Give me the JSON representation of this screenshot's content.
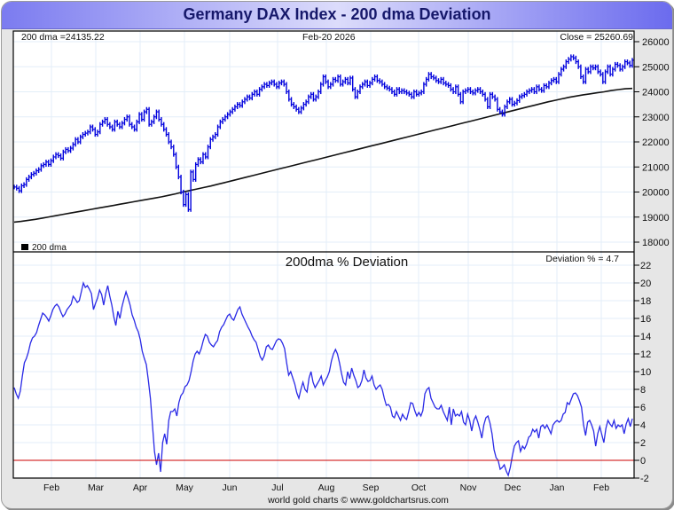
{
  "header": {
    "title": "Germany DAX Index - 200 dma Deviation"
  },
  "footer": {
    "credit": "world gold charts © www.goldchartsrus.com"
  },
  "colors": {
    "price": "#0000dd",
    "dma": "#111111",
    "deviation": "#2a2ae6",
    "zero_line": "#cc0000",
    "grid": "#e3eef8"
  },
  "chart_data": [
    {
      "type": "bar",
      "subtype": "ohlc",
      "title": "Germany DAX Index",
      "annotations": {
        "dma_label": "200 dma =24135.22",
        "date_label": "Feb-20  2026",
        "close_label": "Close = 25260.69"
      },
      "legend": {
        "label": "200 dma",
        "placement": "bottom-left"
      },
      "ylim": [
        17700,
        26300
      ],
      "yticks": [
        18000,
        19000,
        20000,
        21000,
        22000,
        23000,
        24000,
        25000,
        26000
      ],
      "xticks": [
        "Feb",
        "Mar",
        "Apr",
        "May",
        "Jun",
        "Jul",
        "Aug",
        "Sep",
        "Oct",
        "Nov",
        "Dec",
        "Jan",
        "Feb"
      ],
      "grid": true,
      "series": [
        {
          "name": "DAX close (approx, daily)",
          "values": [
            20200,
            20150,
            20050,
            20250,
            20300,
            20500,
            20600,
            20700,
            20750,
            20850,
            20900,
            21050,
            21100,
            21200,
            21100,
            21250,
            21400,
            21500,
            21450,
            21350,
            21600,
            21700,
            21650,
            21750,
            21900,
            22100,
            22000,
            22200,
            22300,
            22350,
            22400,
            22600,
            22500,
            22300,
            22400,
            22700,
            22800,
            22900,
            22700,
            22600,
            22500,
            22800,
            22700,
            22600,
            22750,
            22900,
            23000,
            22700,
            22600,
            22500,
            22800,
            23100,
            22900,
            23200,
            23300,
            22700,
            22800,
            23000,
            23200,
            22900,
            22700,
            22500,
            22300,
            22000,
            21800,
            21500,
            21000,
            20600,
            20000,
            19500,
            19900,
            19300,
            20800,
            20500,
            21100,
            21300,
            21200,
            21500,
            21400,
            21800,
            22100,
            22200,
            22300,
            22600,
            22800,
            22900,
            23000,
            23100,
            23200,
            23300,
            23400,
            23500,
            23450,
            23600,
            23700,
            23800,
            23750,
            23900,
            24000,
            23900,
            24100,
            24200,
            24300,
            24250,
            24350,
            24400,
            24300,
            24200,
            24350,
            24400,
            24300,
            24000,
            23700,
            23500,
            23400,
            23300,
            23200,
            23350,
            23500,
            23600,
            23800,
            23900,
            23700,
            23800,
            24000,
            24300,
            24600,
            24400,
            24200,
            24300,
            24500,
            24450,
            24600,
            24300,
            24400,
            24500,
            24350,
            24550,
            24100,
            23800,
            24000,
            24200,
            24300,
            24400,
            24250,
            24350,
            24500,
            24600,
            24450,
            24400,
            24300,
            24200,
            24150,
            24100,
            24000,
            23900,
            24100,
            24000,
            24050,
            24000,
            23950,
            23900,
            23800,
            24000,
            23900,
            23950,
            24000,
            24300,
            24500,
            24700,
            24600,
            24550,
            24450,
            24400,
            24500,
            24350,
            24300,
            24250,
            24100,
            24000,
            24200,
            23900,
            23600,
            24000,
            24050,
            24100,
            24000,
            23950,
            24050,
            24100,
            24000,
            23900,
            23700,
            23400,
            23900,
            23800,
            23700,
            23300,
            23200,
            23100,
            23400,
            23600,
            23700,
            23500,
            23550,
            23650,
            23800,
            23850,
            23900,
            24000,
            24050,
            24100,
            24000,
            24200,
            24100,
            24050,
            24250,
            24200,
            24350,
            24450,
            24500,
            24400,
            24700,
            24900,
            25000,
            25200,
            25300,
            25400,
            25350,
            25200,
            25000,
            24600,
            24400,
            24900,
            24800,
            25000,
            24950,
            25000,
            24800,
            24700,
            24400,
            24800,
            25000,
            24700,
            24900,
            25100,
            25050,
            24900,
            25000,
            25200,
            25150,
            25050,
            25260
          ]
        },
        {
          "name": "200 dma",
          "values": [
            18800,
            18830,
            18870,
            18910,
            18960,
            19010,
            19060,
            19110,
            19160,
            19210,
            19260,
            19310,
            19360,
            19410,
            19460,
            19510,
            19560,
            19610,
            19660,
            19710,
            19760,
            19810,
            19870,
            19930,
            20000,
            20060,
            20120,
            20180,
            20240,
            20310,
            20380,
            20450,
            20520,
            20590,
            20660,
            20730,
            20800,
            20870,
            20940,
            21010,
            21080,
            21150,
            21220,
            21290,
            21360,
            21430,
            21500,
            21570,
            21640,
            21710,
            21780,
            21850,
            21920,
            21990,
            22060,
            22130,
            22200,
            22270,
            22340,
            22410,
            22480,
            22550,
            22620,
            22690,
            22760,
            22830,
            22900,
            22970,
            23040,
            23110,
            23180,
            23250,
            23320,
            23390,
            23460,
            23530,
            23600,
            23660,
            23720,
            23780,
            23830,
            23880,
            23920,
            23960,
            24000,
            24050,
            24090,
            24120,
            24135
          ]
        }
      ]
    },
    {
      "type": "line",
      "title": "200dma  %  Deviation",
      "annotations": {
        "deviation_label": "Deviation % = 4.7"
      },
      "ylim": [
        -2,
        23
      ],
      "yticks": [
        -2,
        0,
        2,
        4,
        6,
        8,
        10,
        12,
        14,
        16,
        18,
        20,
        22
      ],
      "xticks": [
        "Feb",
        "Mar",
        "Apr",
        "May",
        "Jun",
        "Jul",
        "Aug",
        "Sep",
        "Oct",
        "Nov",
        "Dec",
        "Jan",
        "Feb"
      ],
      "reference_line": 0,
      "grid": true,
      "series": [
        {
          "name": "Deviation %",
          "values": [
            8.2,
            7.5,
            7.0,
            7.8,
            9.5,
            11.0,
            11.5,
            12.2,
            13.2,
            13.8,
            14.0,
            14.4,
            15.2,
            15.9,
            16.6,
            16.4,
            16.1,
            15.7,
            16.3,
            17.0,
            17.4,
            17.6,
            17.3,
            16.7,
            16.2,
            16.5,
            17.0,
            17.3,
            17.6,
            18.5,
            18.2,
            17.8,
            18.0,
            19.0,
            20.0,
            19.5,
            19.7,
            19.3,
            18.8,
            17.0,
            17.7,
            18.3,
            19.2,
            18.7,
            17.5,
            18.8,
            19.7,
            18.5,
            17.5,
            16.2,
            15.2,
            16.8,
            16.0,
            17.3,
            18.2,
            19.0,
            18.3,
            17.5,
            16.4,
            15.8,
            15.0,
            14.5,
            13.6,
            12.3,
            11.5,
            10.8,
            9.0,
            7.0,
            4.0,
            1.0,
            -0.5,
            0.8,
            -1.3,
            2.0,
            3.0,
            1.8,
            4.5,
            5.5,
            5.5,
            5.8,
            5.0,
            6.5,
            7.3,
            7.6,
            8.3,
            8.5,
            9.0,
            10.0,
            11.2,
            12.0,
            12.3,
            12.0,
            12.6,
            13.5,
            14.2,
            14.0,
            13.3,
            13.0,
            12.8,
            13.2,
            13.5,
            14.5,
            15.0,
            15.3,
            15.8,
            16.3,
            16.5,
            16.0,
            15.8,
            16.4,
            17.0,
            17.3,
            16.5,
            16.0,
            15.5,
            15.0,
            14.6,
            14.0,
            13.6,
            13.3,
            12.5,
            11.7,
            11.3,
            11.8,
            12.8,
            13.0,
            12.6,
            12.5,
            13.0,
            13.5,
            13.7,
            13.6,
            13.2,
            12.6,
            11.0,
            9.6,
            10.0,
            9.3,
            8.6,
            7.6,
            7.0,
            8.0,
            8.8,
            8.0,
            7.7,
            9.3,
            10.0,
            8.8,
            8.2,
            8.6,
            9.0,
            9.5,
            8.5,
            9.0,
            9.4,
            10.0,
            11.2,
            12.0,
            12.5,
            12.0,
            11.0,
            9.8,
            8.8,
            8.5,
            10.0,
            9.2,
            10.4,
            9.6,
            9.0,
            8.2,
            8.4,
            9.0,
            10.2,
            9.3,
            8.9,
            9.0,
            9.5,
            8.5,
            8.0,
            8.3,
            8.5,
            8.0,
            7.0,
            6.2,
            6.3,
            6.0,
            5.0,
            4.8,
            5.5,
            5.0,
            4.5,
            5.2,
            4.8,
            4.6,
            5.5,
            6.5,
            6.4,
            5.6,
            5.0,
            5.4,
            5.0,
            5.6,
            7.5,
            8.0,
            8.2,
            7.0,
            6.5,
            6.0,
            5.8,
            5.8,
            6.2,
            5.5,
            5.0,
            4.5,
            6.0,
            4.0,
            5.8,
            5.0,
            5.2,
            5.0,
            5.5,
            4.3,
            4.0,
            5.2,
            4.5,
            3.3,
            4.5,
            5.0,
            4.3,
            3.5,
            2.5,
            4.0,
            4.8,
            5.0,
            4.2,
            3.0,
            1.2,
            0.3,
            0.0,
            -1.0,
            -0.8,
            -0.5,
            -1.2,
            -1.7,
            -0.8,
            0.5,
            1.6,
            2.0,
            2.2,
            1.0,
            1.6,
            1.3,
            1.8,
            2.6,
            2.8,
            3.5,
            3.2,
            3.5,
            2.5,
            3.8,
            4.0,
            3.6,
            4.0,
            3.5,
            3.0,
            4.0,
            4.3,
            4.5,
            4.3,
            4.5,
            5.2,
            5.4,
            6.5,
            6.3,
            6.9,
            7.5,
            7.6,
            7.3,
            6.7,
            6.0,
            4.0,
            2.8,
            4.3,
            4.5,
            4.0,
            3.3,
            1.6,
            3.0,
            3.8,
            2.9,
            2.0,
            3.6,
            4.5,
            4.1,
            3.8,
            4.5,
            3.6,
            4.0,
            3.8,
            4.0,
            3.0,
            4.1,
            4.7,
            3.8,
            4.7
          ]
        }
      ]
    }
  ]
}
